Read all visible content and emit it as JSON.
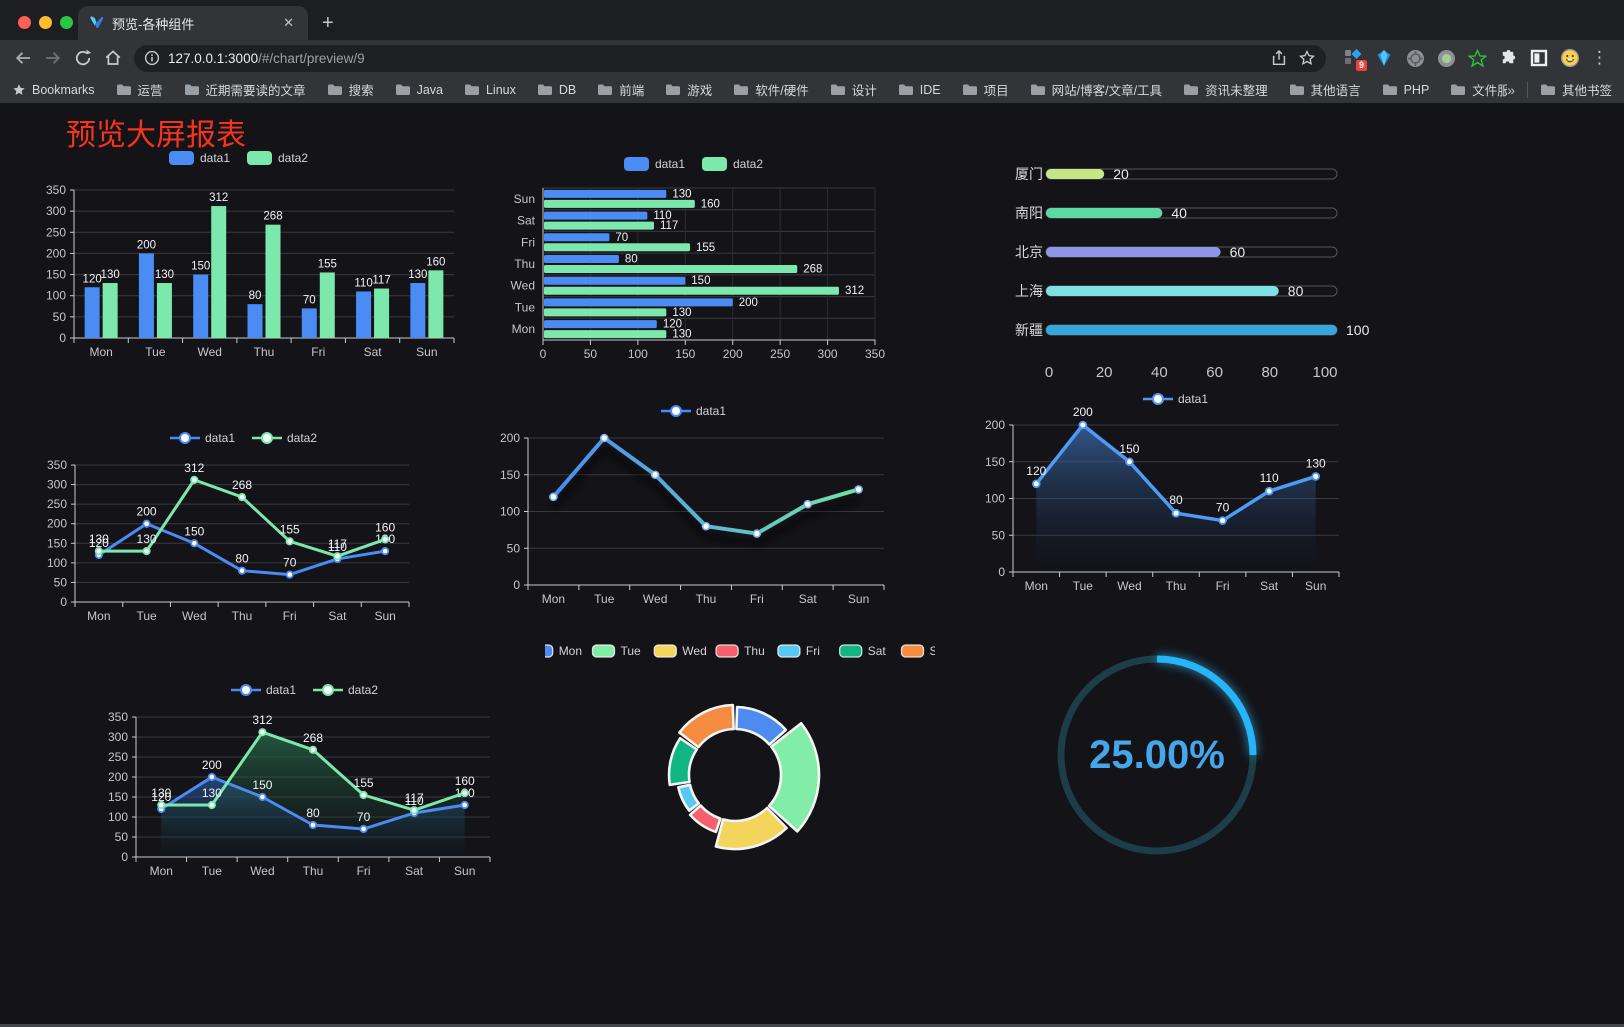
{
  "browser": {
    "tab_title": "预览-各种组件",
    "url_host": "127.0.0.1:3000",
    "url_path": "/#/chart/preview/9",
    "badge_count": "9",
    "bookmarks_label": "Bookmarks",
    "bookmarks": [
      "运营",
      "近期需要读的文章",
      "搜索",
      "Java",
      "Linux",
      "DB",
      "前端",
      "游戏",
      "软件/硬件",
      "设计",
      "IDE",
      "项目",
      "网站/博客/文章/工具",
      "资讯未整理",
      "其他语言",
      "PHP",
      "文件服务器"
    ],
    "bookmarks_overflow": "»",
    "other_bookmarks": "其他书签"
  },
  "page": {
    "title": "预览大屏报表",
    "title_color": "#f5341c",
    "background": "#131318"
  },
  "chart_data": [
    {
      "id": "bar-grouped",
      "type": "bar",
      "categories": [
        "Mon",
        "Tue",
        "Wed",
        "Thu",
        "Fri",
        "Sat",
        "Sun"
      ],
      "series": [
        {
          "name": "data1",
          "color": "#4b8bf4",
          "values": [
            120,
            200,
            150,
            80,
            70,
            110,
            130
          ]
        },
        {
          "name": "data2",
          "color": "#7ce8ab",
          "values": [
            130,
            130,
            312,
            268,
            155,
            117,
            160
          ]
        }
      ],
      "ylim": [
        0,
        350
      ],
      "ytick": 50,
      "grid": true,
      "legend_position": "top",
      "value_labels": true
    },
    {
      "id": "bar-horizontal",
      "type": "hbar",
      "categories": [
        "Mon",
        "Tue",
        "Wed",
        "Thu",
        "Fri",
        "Sat",
        "Sun"
      ],
      "series": [
        {
          "name": "data1",
          "color": "#4b8bf4",
          "values": [
            120,
            200,
            150,
            80,
            70,
            110,
            130
          ]
        },
        {
          "name": "data2",
          "color": "#7ce8ab",
          "values": [
            130,
            130,
            312,
            268,
            155,
            117,
            160
          ]
        }
      ],
      "xlim": [
        0,
        350
      ],
      "xtick": 50,
      "grid": true,
      "legend_position": "top",
      "value_labels": true
    },
    {
      "id": "progress-bars",
      "type": "progress",
      "max": 100,
      "items": [
        {
          "label": "厦门",
          "value": 20,
          "color": "#c5e887"
        },
        {
          "label": "南阳",
          "value": 40,
          "color": "#5fd9a4"
        },
        {
          "label": "北京",
          "value": 60,
          "color": "#8e96e9"
        },
        {
          "label": "上海",
          "value": 80,
          "color": "#7ee0e2"
        },
        {
          "label": "新疆",
          "value": 100,
          "color": "#36a7dd"
        }
      ],
      "xticks": [
        0,
        20,
        40,
        60,
        80,
        100
      ]
    },
    {
      "id": "line-two-series",
      "type": "line",
      "categories": [
        "Mon",
        "Tue",
        "Wed",
        "Thu",
        "Fri",
        "Sat",
        "Sun"
      ],
      "series": [
        {
          "name": "data1",
          "color": "#4b8bf4",
          "values": [
            120,
            200,
            150,
            80,
            70,
            110,
            130
          ]
        },
        {
          "name": "data2",
          "color": "#7ce8ab",
          "values": [
            130,
            130,
            312,
            268,
            155,
            117,
            160
          ]
        }
      ],
      "ylim": [
        0,
        350
      ],
      "ytick": 50,
      "grid": true,
      "legend_position": "top",
      "value_labels": true
    },
    {
      "id": "line-gradient",
      "type": "line-gradient",
      "categories": [
        "Mon",
        "Tue",
        "Wed",
        "Thu",
        "Fri",
        "Sat",
        "Sun"
      ],
      "series": [
        {
          "name": "data1",
          "gradient": [
            "#4a8af5",
            "#6fe4a6"
          ],
          "values": [
            120,
            200,
            150,
            80,
            70,
            110,
            130
          ]
        }
      ],
      "ylim": [
        0,
        200
      ],
      "ytick": 50,
      "grid": true,
      "legend_position": "top",
      "value_labels": false
    },
    {
      "id": "area-single",
      "type": "area",
      "categories": [
        "Mon",
        "Tue",
        "Wed",
        "Thu",
        "Fri",
        "Sat",
        "Sun"
      ],
      "series": [
        {
          "name": "data1",
          "color": "#4e9bf5",
          "area_from": "rgba(62,110,175,0.75)",
          "area_to": "rgba(25,45,75,0)",
          "values": [
            120,
            200,
            150,
            80,
            70,
            110,
            130
          ]
        }
      ],
      "ylim": [
        0,
        200
      ],
      "ytick": 50,
      "grid": true,
      "legend_position": "top",
      "value_labels": true
    },
    {
      "id": "area-two-series",
      "type": "area-multi",
      "categories": [
        "Mon",
        "Tue",
        "Wed",
        "Thu",
        "Fri",
        "Sat",
        "Sun"
      ],
      "series": [
        {
          "name": "data1",
          "color": "#4b8bf4",
          "area_from": "rgba(45,90,160,0.72)",
          "area_to": "rgba(20,40,70,0)",
          "values": [
            120,
            200,
            150,
            80,
            70,
            110,
            130
          ]
        },
        {
          "name": "data2",
          "color": "#7ce8ab",
          "area_from": "rgba(40,105,75,0.78)",
          "area_to": "rgba(20,55,40,0)",
          "values": [
            130,
            130,
            312,
            268,
            155,
            117,
            160
          ]
        }
      ],
      "ylim": [
        0,
        350
      ],
      "ytick": 50,
      "grid": true,
      "legend_position": "top",
      "value_labels": true
    },
    {
      "id": "pie-rose",
      "type": "pie-rose",
      "items": [
        {
          "name": "Mon",
          "value": 120,
          "color": "#4e8bf0"
        },
        {
          "name": "Tue",
          "value": 200,
          "color": "#82eda6"
        },
        {
          "name": "Wed",
          "value": 150,
          "color": "#f3d55b"
        },
        {
          "name": "Thu",
          "value": 80,
          "color": "#f4606c"
        },
        {
          "name": "Fri",
          "value": 70,
          "color": "#57c8f2"
        },
        {
          "name": "Sat",
          "value": 110,
          "color": "#10b581"
        },
        {
          "name": "Sun",
          "value": 130,
          "color": "#f58c42"
        }
      ],
      "legend_position": "top"
    },
    {
      "id": "gauge-ring",
      "type": "gauge",
      "value": 25,
      "text": "25.00%",
      "color": "#27b5f8",
      "track_color": "#1d3d48",
      "text_color": "#46a6ea"
    }
  ]
}
